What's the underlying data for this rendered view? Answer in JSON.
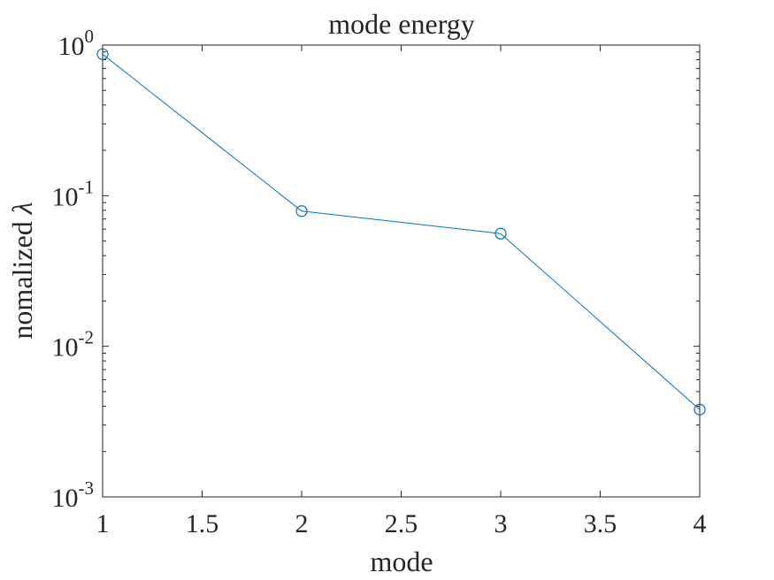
{
  "chart_data": {
    "type": "line",
    "title": "mode energy",
    "xlabel": "mode",
    "ylabel_text": "nomalized ",
    "ylabel_symbol": "λ",
    "xlim": [
      1,
      4
    ],
    "ylim": [
      0.001,
      1
    ],
    "yscale": "log",
    "grid": false,
    "x_ticks": [
      {
        "value": 1,
        "label": "1"
      },
      {
        "value": 1.5,
        "label": "1.5"
      },
      {
        "value": 2,
        "label": "2"
      },
      {
        "value": 2.5,
        "label": "2.5"
      },
      {
        "value": 3,
        "label": "3"
      },
      {
        "value": 3.5,
        "label": "3.5"
      },
      {
        "value": 4,
        "label": "4"
      }
    ],
    "y_ticks": [
      {
        "value": 1,
        "base": "10",
        "exp": "0"
      },
      {
        "value": 0.1,
        "base": "10",
        "exp": "-1"
      },
      {
        "value": 0.01,
        "base": "10",
        "exp": "-2"
      },
      {
        "value": 0.001,
        "base": "10",
        "exp": "-3"
      }
    ],
    "series": [
      {
        "x": [
          1,
          2,
          3,
          4
        ],
        "y": [
          0.87,
          0.079,
          0.056,
          0.0038
        ],
        "color": "#0072BD",
        "marker": "circle"
      }
    ]
  }
}
